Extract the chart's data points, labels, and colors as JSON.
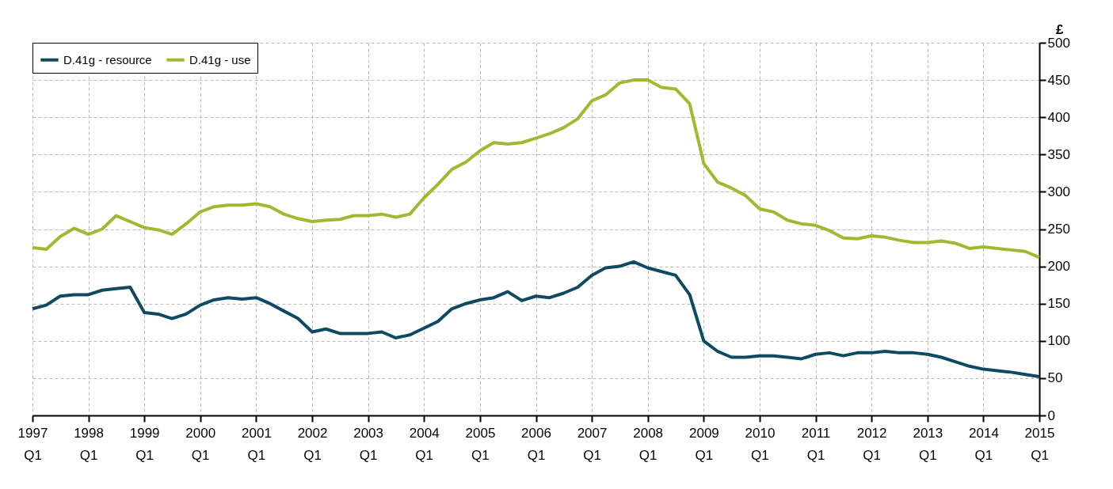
{
  "chart_data": {
    "type": "line",
    "ylabel": "£",
    "x": [
      "1997-01",
      "1997-04",
      "1997-07",
      "1997-10",
      "1998-01",
      "1998-04",
      "1998-07",
      "1998-10",
      "1999-01",
      "1999-04",
      "1999-07",
      "1999-10",
      "2000-01",
      "2000-04",
      "2000-07",
      "2000-10",
      "2001-01",
      "2001-04",
      "2001-07",
      "2001-10",
      "2002-01",
      "2002-04",
      "2002-07",
      "2002-10",
      "2003-01",
      "2003-04",
      "2003-07",
      "2003-10",
      "2004-01",
      "2004-04",
      "2004-07",
      "2004-10",
      "2005-01",
      "2005-04",
      "2005-07",
      "2005-10",
      "2006-01",
      "2006-04",
      "2006-07",
      "2006-10",
      "2007-01",
      "2007-04",
      "2007-07",
      "2007-10",
      "2008-01",
      "2008-04",
      "2008-07",
      "2008-10",
      "2009-01",
      "2009-04",
      "2009-07",
      "2009-10",
      "2010-01",
      "2010-04",
      "2010-07",
      "2010-10",
      "2011-01",
      "2011-04",
      "2011-07",
      "2011-10",
      "2012-01",
      "2012-04",
      "2012-07",
      "2012-10",
      "2013-01",
      "2013-04",
      "2013-07",
      "2013-10",
      "2014-01",
      "2014-04",
      "2014-07",
      "2014-10",
      "2015-01"
    ],
    "xlim": [
      "1997-01",
      "2015-01"
    ],
    "xticks": [
      {
        "value": "1997-01",
        "label": "1997 Q1"
      },
      {
        "value": "1998-01",
        "label": "1998 Q1"
      },
      {
        "value": "1999-01",
        "label": "1999 Q1"
      },
      {
        "value": "2000-01",
        "label": "2000 Q1"
      },
      {
        "value": "2001-01",
        "label": "2001 Q1"
      },
      {
        "value": "2002-01",
        "label": "2002 Q1"
      },
      {
        "value": "2003-01",
        "label": "2003 Q1"
      },
      {
        "value": "2004-01",
        "label": "2004 Q1"
      },
      {
        "value": "2005-01",
        "label": "2005 Q1"
      },
      {
        "value": "2006-01",
        "label": "2006 Q1"
      },
      {
        "value": "2007-01",
        "label": "2007 Q1"
      },
      {
        "value": "2008-01",
        "label": "2008 Q1"
      },
      {
        "value": "2009-01",
        "label": "2009 Q1"
      },
      {
        "value": "2010-01",
        "label": "2010 Q1"
      },
      {
        "value": "2011-01",
        "label": "2011 Q1"
      },
      {
        "value": "2012-01",
        "label": "2012 Q1"
      },
      {
        "value": "2013-01",
        "label": "2013 Q1"
      },
      {
        "value": "2014-01",
        "label": "2014 Q1"
      },
      {
        "value": "2015-01",
        "label": "2015 Q1"
      }
    ],
    "series": [
      {
        "name": "D.41g - resource",
        "color": "#0e4a63",
        "values": [
          143,
          148,
          160,
          162,
          162,
          168,
          170,
          172,
          138,
          136,
          130,
          136,
          148,
          155,
          158,
          156,
          158,
          150,
          140,
          130,
          112,
          116,
          110,
          110,
          110,
          112,
          104,
          108,
          117,
          126,
          143,
          150,
          155,
          158,
          166,
          154,
          160,
          158,
          164,
          172,
          188,
          198,
          200,
          206,
          198,
          193,
          188,
          162,
          100,
          86,
          78,
          78,
          80,
          80,
          78,
          76,
          82,
          84,
          80,
          84,
          84,
          86,
          84,
          84,
          82,
          78,
          72,
          66,
          62,
          60,
          58,
          55,
          52
        ]
      },
      {
        "name": "D.41g - use",
        "color": "#9dbb30",
        "values": [
          225,
          223,
          240,
          251,
          243,
          250,
          268,
          260,
          252,
          249,
          243,
          257,
          273,
          280,
          282,
          282,
          284,
          280,
          270,
          264,
          260,
          262,
          263,
          268,
          268,
          270,
          266,
          270,
          292,
          310,
          330,
          340,
          355,
          366,
          364,
          366,
          372,
          378,
          386,
          398,
          422,
          430,
          446,
          450,
          450,
          440,
          438,
          418,
          338,
          313,
          305,
          295,
          277,
          273,
          262,
          257,
          255,
          248,
          238,
          237,
          241,
          239,
          235,
          232,
          232,
          234,
          231,
          224,
          226,
          224,
          222,
          220,
          212
        ]
      }
    ],
    "ylim": [
      0,
      500
    ],
    "yticks": [
      0,
      50,
      100,
      150,
      200,
      250,
      300,
      350,
      400,
      450,
      500
    ],
    "grid": true,
    "legend": "top left",
    "line_style": "solid",
    "marker": "none"
  }
}
